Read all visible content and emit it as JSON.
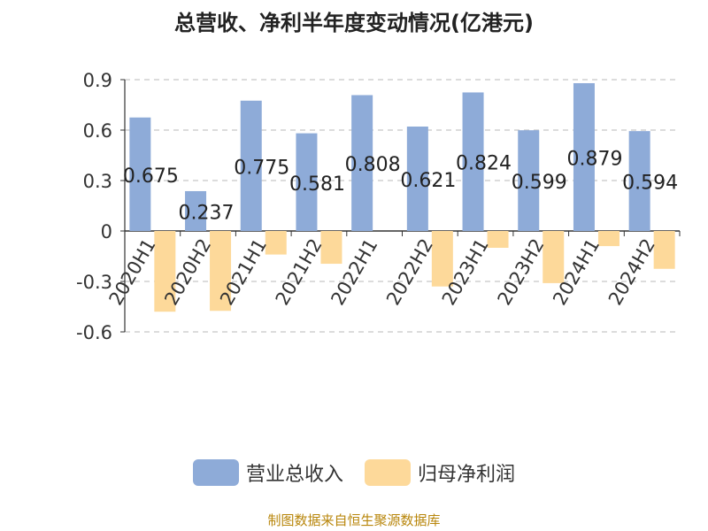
{
  "title": "总营收、净利半年度变动情况(亿港元)",
  "source": "制图数据来自恒生聚源数据库",
  "colors": {
    "revenue": "#8eabd8",
    "profit": "#fdd99a"
  },
  "chart_data": {
    "type": "bar",
    "title": "总营收、净利半年度变动情况(亿港元)",
    "categories": [
      "2020H1",
      "2020H2",
      "2021H1",
      "2021H2",
      "2022H1",
      "2022H2",
      "2023H1",
      "2023H2",
      "2024H1",
      "2024H2"
    ],
    "series": [
      {
        "name": "营业总收入",
        "values": [
          0.675,
          0.237,
          0.775,
          0.581,
          0.808,
          0.621,
          0.824,
          0.599,
          0.879,
          0.594
        ]
      },
      {
        "name": "归母净利润",
        "values": [
          -0.48,
          -0.475,
          -0.14,
          -0.195,
          0,
          -0.33,
          -0.1,
          -0.31,
          -0.09,
          -0.225
        ]
      }
    ],
    "data_labels": [
      "0.675",
      "0.237",
      "0.775",
      "0.581",
      "0.808",
      "0.621",
      "0.824",
      "0.599",
      "0.879",
      "0.594"
    ],
    "yticks": [
      "0.9",
      "0.6",
      "0.3",
      "0",
      "-0.3",
      "-0.6"
    ],
    "ylim": [
      -0.6,
      0.9
    ],
    "grid": true,
    "legend": "bottom"
  }
}
